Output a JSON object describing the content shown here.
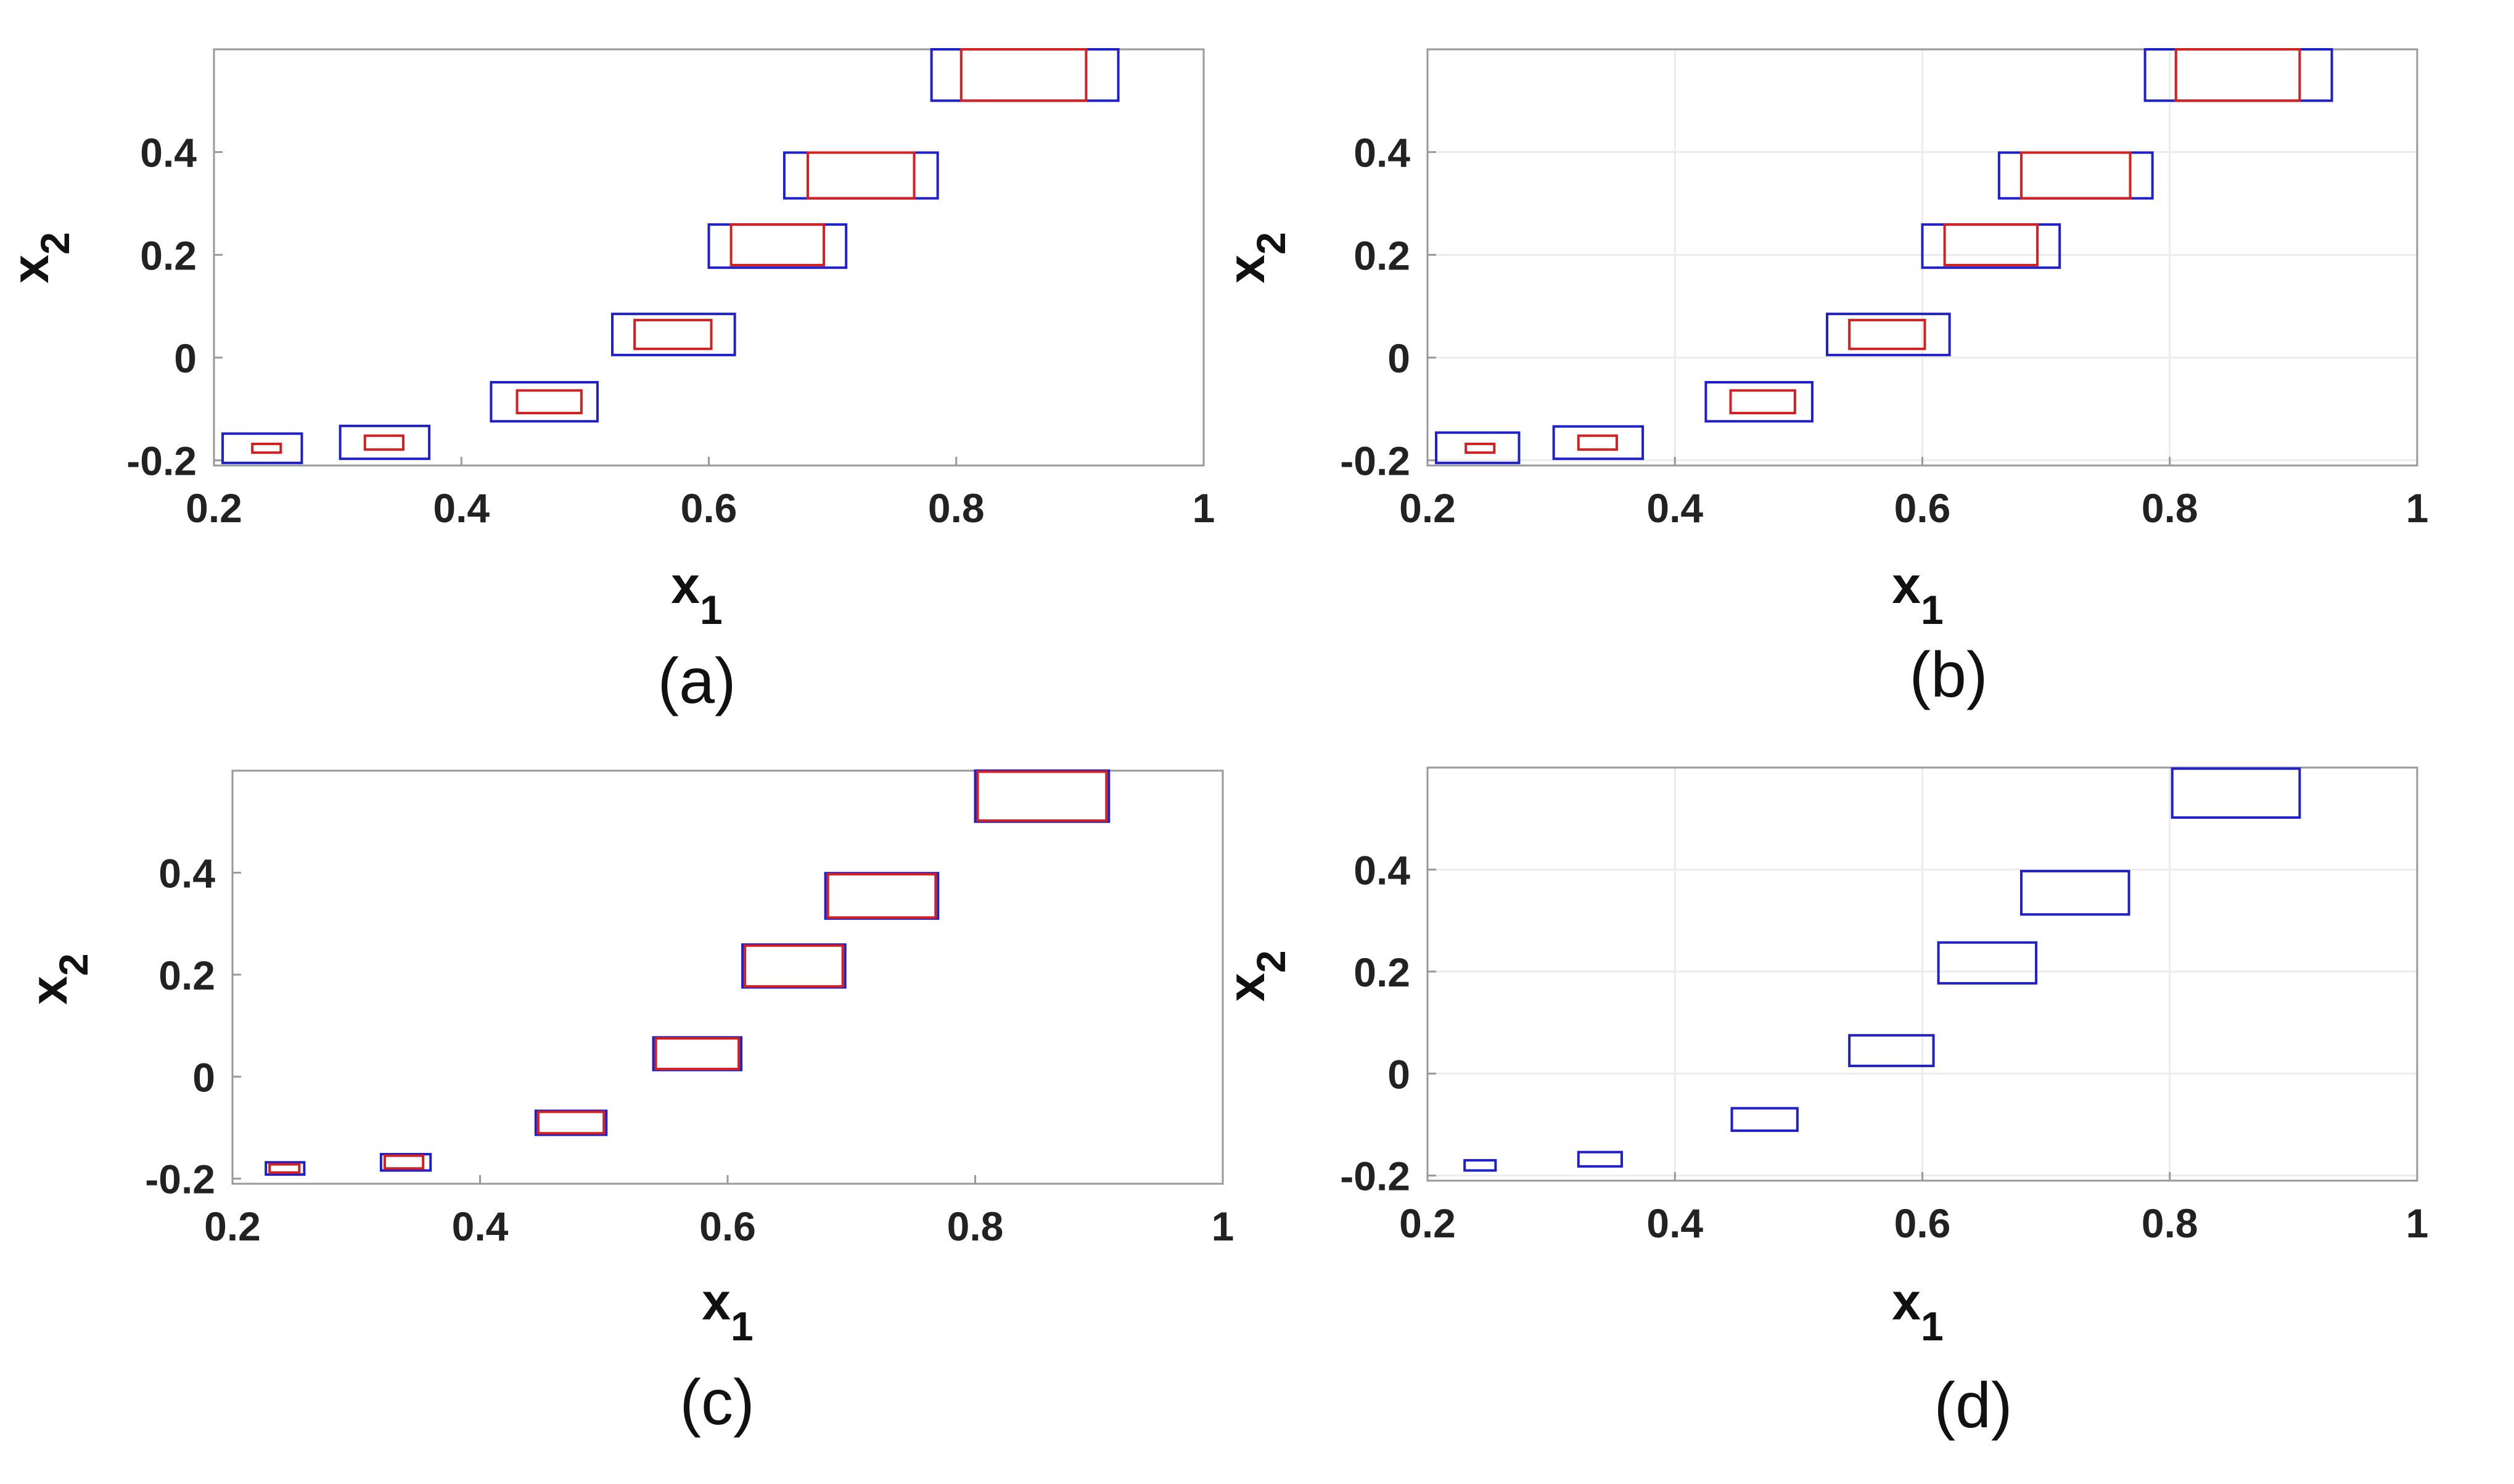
{
  "colors": {
    "outer_box": "#1f1fcc",
    "inner_box": "#d42020",
    "axes": "#999999",
    "grid": "#ececec",
    "text": "#111111"
  },
  "chart_data": [
    {
      "type": "scatter",
      "caption": "(a)",
      "xlabel": "x",
      "xlabel_sub": "1",
      "ylabel": "x",
      "ylabel_sub": "2",
      "xlim": [
        0.2,
        1.0
      ],
      "ylim": [
        -0.21,
        0.6
      ],
      "xticks": [
        0.2,
        0.4,
        0.6,
        0.8,
        1.0
      ],
      "xtick_labels": [
        "0.2",
        "0.4",
        "0.6",
        "0.8",
        "1"
      ],
      "yticks": [
        -0.2,
        0,
        0.2,
        0.4
      ],
      "ytick_labels": [
        "-0.2",
        "0",
        "0.2",
        "0.4"
      ],
      "grid": false,
      "outer_boxes": [
        [
          0.207,
          0.271,
          -0.205,
          -0.148
        ],
        [
          0.302,
          0.374,
          -0.197,
          -0.133
        ],
        [
          0.424,
          0.51,
          -0.124,
          -0.048
        ],
        [
          0.522,
          0.621,
          0.005,
          0.085
        ],
        [
          0.6,
          0.711,
          0.175,
          0.259
        ],
        [
          0.661,
          0.785,
          0.31,
          0.399
        ],
        [
          0.78,
          0.931,
          0.5,
          0.6
        ]
      ],
      "inner_boxes": [
        [
          0.231,
          0.254,
          -0.185,
          -0.168
        ],
        [
          0.322,
          0.353,
          -0.179,
          -0.152
        ],
        [
          0.445,
          0.497,
          -0.108,
          -0.064
        ],
        [
          0.54,
          0.602,
          0.017,
          0.073
        ],
        [
          0.618,
          0.693,
          0.18,
          0.259
        ],
        [
          0.68,
          0.766,
          0.31,
          0.399
        ],
        [
          0.804,
          0.905,
          0.5,
          0.6
        ]
      ]
    },
    {
      "type": "scatter",
      "caption": "(b)",
      "xlabel": "x",
      "xlabel_sub": "1",
      "ylabel": "x",
      "ylabel_sub": "2",
      "xlim": [
        0.2,
        1.0
      ],
      "ylim": [
        -0.21,
        0.6
      ],
      "xticks": [
        0.2,
        0.4,
        0.6,
        0.8,
        1.0
      ],
      "xtick_labels": [
        "0.2",
        "0.4",
        "0.6",
        "0.8",
        "1"
      ],
      "yticks": [
        -0.2,
        0,
        0.2,
        0.4
      ],
      "ytick_labels": [
        "-0.2",
        "0",
        "0.2",
        "0.4"
      ],
      "grid": true,
      "outer_boxes": [
        [
          0.207,
          0.274,
          -0.205,
          -0.146
        ],
        [
          0.302,
          0.374,
          -0.197,
          -0.134
        ],
        [
          0.425,
          0.511,
          -0.124,
          -0.048
        ],
        [
          0.523,
          0.622,
          0.005,
          0.085
        ],
        [
          0.6,
          0.711,
          0.175,
          0.259
        ],
        [
          0.662,
          0.786,
          0.31,
          0.399
        ],
        [
          0.78,
          0.931,
          0.5,
          0.6
        ]
      ],
      "inner_boxes": [
        [
          0.231,
          0.254,
          -0.185,
          -0.168
        ],
        [
          0.322,
          0.353,
          -0.179,
          -0.152
        ],
        [
          0.445,
          0.497,
          -0.108,
          -0.064
        ],
        [
          0.541,
          0.602,
          0.017,
          0.073
        ],
        [
          0.618,
          0.693,
          0.18,
          0.259
        ],
        [
          0.68,
          0.768,
          0.31,
          0.399
        ],
        [
          0.805,
          0.905,
          0.5,
          0.6
        ]
      ]
    },
    {
      "type": "scatter",
      "caption": "(c)",
      "xlabel": "x",
      "xlabel_sub": "1",
      "ylabel": "x",
      "ylabel_sub": "2",
      "xlim": [
        0.2,
        1.0
      ],
      "ylim": [
        -0.21,
        0.6
      ],
      "xticks": [
        0.2,
        0.4,
        0.6,
        0.8,
        1.0
      ],
      "xtick_labels": [
        "0.2",
        "0.4",
        "0.6",
        "0.8",
        "1"
      ],
      "yticks": [
        -0.2,
        0,
        0.2,
        0.4
      ],
      "ytick_labels": [
        "-0.2",
        "0",
        "0.2",
        "0.4"
      ],
      "grid": false,
      "outer_boxes": [
        [
          0.227,
          0.258,
          -0.192,
          -0.168
        ],
        [
          0.32,
          0.36,
          -0.184,
          -0.152
        ],
        [
          0.445,
          0.502,
          -0.114,
          -0.067
        ],
        [
          0.54,
          0.611,
          0.013,
          0.077
        ],
        [
          0.612,
          0.695,
          0.175,
          0.259
        ],
        [
          0.679,
          0.77,
          0.31,
          0.399
        ],
        [
          0.8,
          0.908,
          0.5,
          0.6
        ]
      ],
      "inner_boxes": [
        [
          0.23,
          0.254,
          -0.188,
          -0.172
        ],
        [
          0.323,
          0.354,
          -0.18,
          -0.155
        ],
        [
          0.447,
          0.5,
          -0.111,
          -0.069
        ],
        [
          0.542,
          0.609,
          0.015,
          0.075
        ],
        [
          0.614,
          0.693,
          0.177,
          0.257
        ],
        [
          0.681,
          0.768,
          0.312,
          0.397
        ],
        [
          0.802,
          0.906,
          0.502,
          0.598
        ]
      ]
    },
    {
      "type": "scatter",
      "caption": "(d)",
      "xlabel": "x",
      "xlabel_sub": "1",
      "ylabel": "x",
      "ylabel_sub": "2",
      "xlim": [
        0.2,
        1.0
      ],
      "ylim": [
        -0.21,
        0.6
      ],
      "xticks": [
        0.2,
        0.4,
        0.6,
        0.8,
        1.0
      ],
      "xtick_labels": [
        "0.2",
        "0.4",
        "0.6",
        "0.8",
        "1"
      ],
      "yticks": [
        -0.2,
        0,
        0.2,
        0.4
      ],
      "ytick_labels": [
        "-0.2",
        "0",
        "0.2",
        "0.4"
      ],
      "grid": true,
      "outer_boxes": [
        [
          0.23,
          0.255,
          -0.19,
          -0.17
        ],
        [
          0.322,
          0.357,
          -0.182,
          -0.154
        ],
        [
          0.446,
          0.499,
          -0.112,
          -0.068
        ],
        [
          0.541,
          0.609,
          0.015,
          0.075
        ],
        [
          0.613,
          0.692,
          0.177,
          0.257
        ],
        [
          0.68,
          0.767,
          0.312,
          0.397
        ],
        [
          0.802,
          0.905,
          0.502,
          0.598
        ]
      ],
      "inner_boxes": []
    }
  ]
}
